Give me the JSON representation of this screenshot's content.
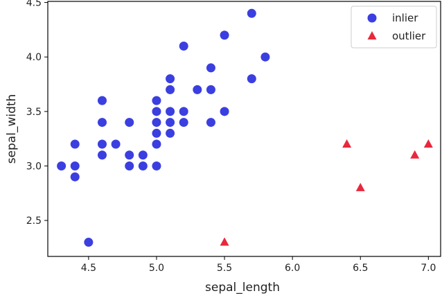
{
  "chart_data": {
    "type": "scatter",
    "xlabel": "sepal_length",
    "ylabel": "sepal_width",
    "xlim": [
      4.2,
      7.09
    ],
    "ylim": [
      2.17,
      4.51
    ],
    "xticks": [
      "4.5",
      "5.0",
      "5.5",
      "6.0",
      "6.5",
      "7.0"
    ],
    "yticks": [
      "2.5",
      "3.0",
      "3.5",
      "4.0",
      "4.5"
    ],
    "legend_position": "top-right",
    "series": [
      {
        "name": "inlier",
        "marker": "circle",
        "color": "#3b3fe0",
        "points": [
          [
            4.3,
            3.0
          ],
          [
            4.4,
            3.2
          ],
          [
            4.4,
            3.0
          ],
          [
            4.4,
            2.9
          ],
          [
            4.5,
            2.3
          ],
          [
            4.6,
            3.6
          ],
          [
            4.6,
            3.4
          ],
          [
            4.6,
            3.2
          ],
          [
            4.6,
            3.1
          ],
          [
            4.7,
            3.2
          ],
          [
            4.8,
            3.4
          ],
          [
            4.8,
            3.1
          ],
          [
            4.8,
            3.0
          ],
          [
            4.9,
            3.1
          ],
          [
            4.9,
            3.0
          ],
          [
            5.0,
            3.6
          ],
          [
            5.0,
            3.5
          ],
          [
            5.0,
            3.4
          ],
          [
            5.0,
            3.3
          ],
          [
            5.0,
            3.2
          ],
          [
            5.0,
            3.0
          ],
          [
            5.1,
            3.8
          ],
          [
            5.1,
            3.7
          ],
          [
            5.1,
            3.5
          ],
          [
            5.1,
            3.4
          ],
          [
            5.1,
            3.3
          ],
          [
            5.2,
            4.1
          ],
          [
            5.2,
            3.5
          ],
          [
            5.2,
            3.4
          ],
          [
            5.3,
            3.7
          ],
          [
            5.4,
            3.9
          ],
          [
            5.4,
            3.7
          ],
          [
            5.4,
            3.4
          ],
          [
            5.5,
            4.2
          ],
          [
            5.5,
            3.5
          ],
          [
            5.7,
            4.4
          ],
          [
            5.7,
            3.8
          ],
          [
            5.8,
            4.0
          ]
        ]
      },
      {
        "name": "outlier",
        "marker": "triangle",
        "color": "#e8283c",
        "points": [
          [
            5.5,
            2.3
          ],
          [
            6.4,
            3.2
          ],
          [
            6.5,
            2.8
          ],
          [
            6.9,
            3.1
          ],
          [
            7.0,
            3.2
          ]
        ]
      }
    ]
  }
}
